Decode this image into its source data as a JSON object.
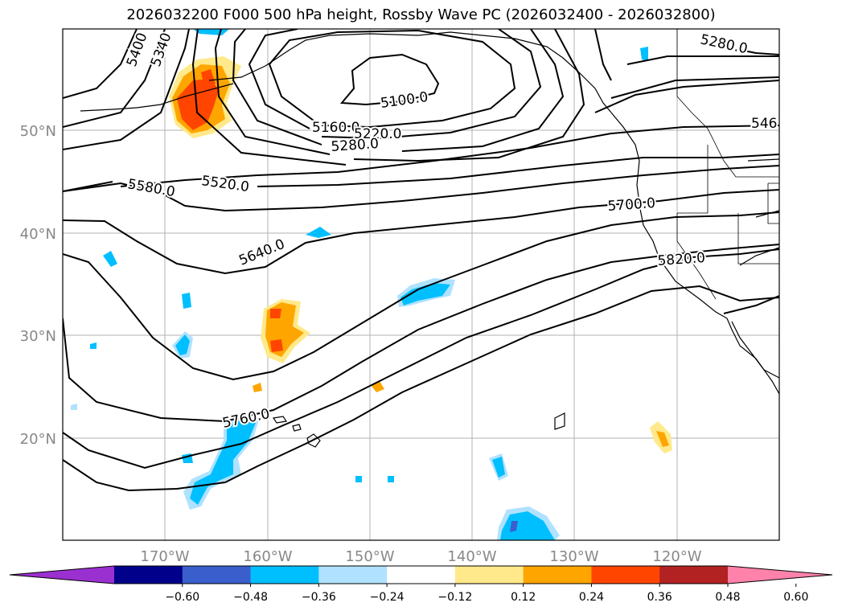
{
  "title": "2026032200 F000 500 hPa height, Rossby Wave PC (2026032400 - 2026032800)",
  "axes": {
    "lat_labels": [
      "50°N",
      "40°N",
      "30°N",
      "20°N"
    ],
    "lon_labels": [
      "170°W",
      "160°W",
      "150°W",
      "140°W",
      "130°W",
      "120°W"
    ]
  },
  "contour_labels": [
    "5400",
    "5340",
    "5100.0",
    "5160.0",
    "5220.0",
    "5280.0",
    "5280.0",
    "546",
    "5580.0",
    "5520.0",
    "5640.0",
    "5700.0",
    "5820.0",
    "5760.0"
  ],
  "colorbar": {
    "tick_labels": [
      "−0.60",
      "−0.48",
      "−0.36",
      "−0.24",
      "−0.12",
      "0.12",
      "0.24",
      "0.36",
      "0.48",
      "0.60"
    ],
    "colors": [
      "#9b30d0",
      "#00008b",
      "#3a5fcd",
      "#00bfff",
      "#b0e2ff",
      "#ffffff",
      "#ffe98a",
      "#ffa500",
      "#ff4500",
      "#b22222",
      "#ff82ab"
    ]
  }
}
